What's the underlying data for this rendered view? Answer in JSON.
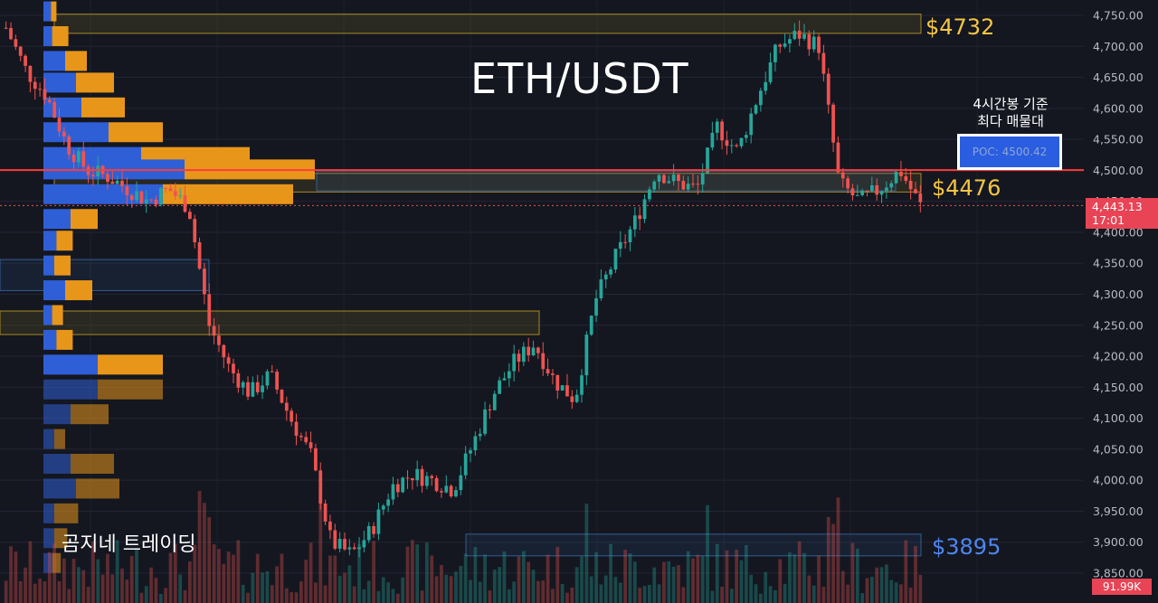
{
  "title": "ETH/USDT",
  "brand": "곰지네 트레이딩",
  "note": {
    "line1": "4시간봉 기준",
    "line2": "최다 매물대"
  },
  "poc_label": "POC: 4500.42",
  "levels": {
    "top": "$4732",
    "mid": "$4476",
    "bottom": "$3895"
  },
  "current": {
    "price": "4,443.13",
    "time": "17:01",
    "volume": "91.99K"
  },
  "colors": {
    "up": "#26a69a",
    "down": "#ef5350",
    "accent_red": "#ff3b3b",
    "volume_buy": "#2f5fd6",
    "volume_sell": "#e8961a",
    "zone_gold": "#c9a227",
    "zone_blue": "#3a6db0"
  },
  "chart_data": {
    "type": "candlestick",
    "ylim": [
      3830,
      4760
    ],
    "yticks": [
      4750,
      4700,
      4650,
      4600,
      4550,
      4500,
      4450,
      4400,
      4350,
      4300,
      4250,
      4200,
      4150,
      4100,
      4050,
      4000,
      3950,
      3900,
      3850
    ],
    "tick_labels": [
      "4,750.00",
      "4,700.00",
      "4,650.00",
      "4,600.00",
      "4,550.00",
      "4,500.00",
      "4,450.00",
      "4,400.00",
      "4,350.00",
      "4,300.00",
      "4,250.00",
      "4,200.00",
      "4,150.00",
      "4,100.00",
      "4,050.00",
      "4,000.00",
      "3,950.00",
      "3,900.00",
      "3,850.00"
    ],
    "poc_price": 4500.42,
    "current_price": 4443.13,
    "zones": [
      {
        "color": "gold",
        "from": 4721,
        "to": 4752,
        "extends": "to-right-labels"
      },
      {
        "color": "gold",
        "from": 4465,
        "to": 4495,
        "extends": "to-right-labels"
      },
      {
        "color": "gold",
        "from": 4235,
        "to": 4273,
        "extends": "short"
      },
      {
        "color": "blue",
        "from": 4306,
        "to": 4356,
        "extends": "short"
      },
      {
        "color": "blue",
        "from": 4467,
        "to": 4498,
        "extends": "partial"
      },
      {
        "color": "blue",
        "from": 3878,
        "to": 3913,
        "extends": "to-right-labels"
      }
    ],
    "path": [
      4730,
      4660,
      4620,
      4540,
      4500,
      4490,
      4470,
      4450,
      4470,
      4440,
      4250,
      4180,
      4140,
      4170,
      4100,
      4040,
      3900,
      3880,
      3920,
      3990,
      4010,
      4000,
      3985,
      4060,
      4140,
      4190,
      4220,
      4160,
      4130,
      4290,
      4360,
      4420,
      4500,
      4480,
      4470,
      4570,
      4530,
      4620,
      4700,
      4720,
      4700,
      4480,
      4450,
      4470,
      4500,
      4443.13
    ],
    "volume_profile": [
      {
        "price": 4755,
        "buy": 0.07,
        "sell": 0.05
      },
      {
        "price": 4715,
        "buy": 0.08,
        "sell": 0.15
      },
      {
        "price": 4675,
        "buy": 0.2,
        "sell": 0.2
      },
      {
        "price": 4640,
        "buy": 0.3,
        "sell": 0.35
      },
      {
        "price": 4600,
        "buy": 0.35,
        "sell": 0.4
      },
      {
        "price": 4560,
        "buy": 0.6,
        "sell": 0.5
      },
      {
        "price": 4520,
        "buy": 0.9,
        "sell": 1.0
      },
      {
        "price": 4500,
        "buy": 1.3,
        "sell": 1.2
      },
      {
        "price": 4460,
        "buy": 1.1,
        "sell": 1.2
      },
      {
        "price": 4420,
        "buy": 0.25,
        "sell": 0.25
      },
      {
        "price": 4385,
        "buy": 0.12,
        "sell": 0.15
      },
      {
        "price": 4345,
        "buy": 0.1,
        "sell": 0.15
      },
      {
        "price": 4305,
        "buy": 0.2,
        "sell": 0.25
      },
      {
        "price": 4265,
        "buy": 0.08,
        "sell": 0.1
      },
      {
        "price": 4225,
        "buy": 0.12,
        "sell": 0.15
      },
      {
        "price": 4185,
        "buy": 0.5,
        "sell": 0.6
      },
      {
        "price": 4145,
        "buy": 0.5,
        "sell": 0.6
      },
      {
        "price": 4105,
        "buy": 0.25,
        "sell": 0.35
      },
      {
        "price": 4065,
        "buy": 0.1,
        "sell": 0.1
      },
      {
        "price": 4025,
        "buy": 0.25,
        "sell": 0.4
      },
      {
        "price": 3985,
        "buy": 0.3,
        "sell": 0.4
      },
      {
        "price": 3945,
        "buy": 0.1,
        "sell": 0.22
      },
      {
        "price": 3905,
        "buy": 0.1,
        "sell": 0.12
      },
      {
        "price": 3865,
        "buy": 0.08,
        "sell": 0.08
      }
    ]
  }
}
